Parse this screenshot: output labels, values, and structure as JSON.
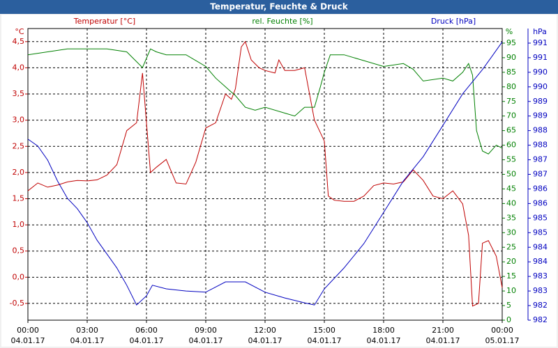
{
  "chart_data": {
    "type": "line",
    "title": "Temperatur, Feuchte & Druck",
    "ylabel": "°C",
    "y2label": "%",
    "y3label": "hPa",
    "xlim": [
      0,
      24
    ],
    "xticks": [
      {
        "value": 0,
        "label": "00:00",
        "sublabel": "04.01.17"
      },
      {
        "value": 3,
        "label": "03:00",
        "sublabel": "04.01.17"
      },
      {
        "value": 6,
        "label": "06:00",
        "sublabel": "04.01.17"
      },
      {
        "value": 9,
        "label": "09:00",
        "sublabel": "04.01.17"
      },
      {
        "value": 12,
        "label": "12:00",
        "sublabel": "04.01.17"
      },
      {
        "value": 15,
        "label": "15:00",
        "sublabel": "04.01.17"
      },
      {
        "value": 18,
        "label": "18:00",
        "sublabel": "04.01.17"
      },
      {
        "value": 21,
        "label": "21:00",
        "sublabel": "04.01.17"
      },
      {
        "value": 24,
        "label": "00:00",
        "sublabel": "05.01.17"
      }
    ],
    "ylim": [
      -0.82,
      4.75
    ],
    "yticks": [
      {
        "value": -0.5,
        "label": "-0,5"
      },
      {
        "value": 0,
        "label": "0,0"
      },
      {
        "value": 0.5,
        "label": "0,5"
      },
      {
        "value": 1,
        "label": "1,0"
      },
      {
        "value": 1.5,
        "label": "1,5"
      },
      {
        "value": 2,
        "label": "2,0"
      },
      {
        "value": 2.5,
        "label": "2,5"
      },
      {
        "value": 3,
        "label": "3,0"
      },
      {
        "value": 3.5,
        "label": "3,5"
      },
      {
        "value": 4,
        "label": "4,0"
      },
      {
        "value": 4.5,
        "label": "4,5"
      }
    ],
    "y2lim": [
      0,
      100
    ],
    "y2ticks": [
      0,
      5,
      10,
      15,
      20,
      25,
      30,
      35,
      40,
      45,
      50,
      55,
      60,
      65,
      70,
      75,
      80,
      85,
      90,
      95
    ],
    "y3lim": [
      981.9,
      991.5
    ],
    "y3ticks": [
      {
        "value": 981.9,
        "label": "982"
      },
      {
        "value": 982.38,
        "label": "982"
      },
      {
        "value": 982.86,
        "label": "983"
      },
      {
        "value": 983.34,
        "label": "983"
      },
      {
        "value": 983.82,
        "label": "984"
      },
      {
        "value": 984.3,
        "label": "984"
      },
      {
        "value": 984.78,
        "label": "985"
      },
      {
        "value": 985.26,
        "label": "985"
      },
      {
        "value": 985.74,
        "label": "986"
      },
      {
        "value": 986.22,
        "label": "986"
      },
      {
        "value": 986.7,
        "label": "987"
      },
      {
        "value": 987.18,
        "label": "987"
      },
      {
        "value": 987.66,
        "label": "988"
      },
      {
        "value": 988.14,
        "label": "988"
      },
      {
        "value": 988.62,
        "label": "989"
      },
      {
        "value": 989.1,
        "label": "989"
      },
      {
        "value": 989.58,
        "label": "990"
      },
      {
        "value": 990.06,
        "label": "990"
      },
      {
        "value": 990.54,
        "label": "991"
      },
      {
        "value": 991.02,
        "label": "991"
      }
    ],
    "grid": true,
    "series": [
      {
        "name": "Temperatur [°C]",
        "color": "#c00000",
        "axis": "y",
        "x": [
          0,
          0.5,
          1,
          1.5,
          2,
          2.5,
          3,
          3.5,
          4,
          4.5,
          5,
          5.5,
          5.8,
          6.2,
          6.5,
          7,
          7.5,
          8,
          8.5,
          9,
          9.5,
          10,
          10.3,
          10.5,
          10.8,
          11,
          11.3,
          11.7,
          12,
          12.5,
          12.7,
          13,
          13.5,
          14,
          14.5,
          15,
          15.2,
          15.5,
          16,
          16.5,
          17,
          17.5,
          18,
          18.5,
          19,
          19.5,
          20,
          20.5,
          21,
          21.5,
          22,
          22.3,
          22.5,
          22.8,
          23,
          23.3,
          23.7,
          24
        ],
        "values": [
          1.65,
          1.8,
          1.72,
          1.76,
          1.82,
          1.85,
          1.84,
          1.86,
          1.95,
          2.15,
          2.8,
          2.95,
          3.9,
          2.0,
          2.1,
          2.25,
          1.8,
          1.78,
          2.2,
          2.85,
          2.95,
          3.5,
          3.4,
          3.6,
          4.4,
          4.5,
          4.15,
          4.0,
          3.95,
          3.9,
          4.15,
          3.95,
          3.95,
          4.0,
          3.0,
          2.6,
          1.55,
          1.47,
          1.45,
          1.45,
          1.55,
          1.75,
          1.8,
          1.78,
          1.82,
          2.05,
          1.85,
          1.55,
          1.5,
          1.65,
          1.4,
          0.8,
          -0.55,
          -0.5,
          0.65,
          0.7,
          0.4,
          -0.2
        ]
      },
      {
        "name": "rel. Feuchte [%]",
        "color": "#008000",
        "axis": "y2",
        "x": [
          0,
          1,
          2,
          3,
          4,
          5,
          5.8,
          6.2,
          6.5,
          7,
          8,
          8.5,
          9,
          9.5,
          10,
          10.5,
          11,
          11.5,
          12,
          13,
          13.5,
          14,
          14.5,
          14.8,
          15,
          15.3,
          16,
          17,
          18,
          19,
          19.5,
          20,
          21,
          21.5,
          22,
          22.3,
          22.5,
          22.7,
          23,
          23.3,
          23.7,
          24
        ],
        "values": [
          91,
          92,
          93,
          93,
          93,
          92,
          86.6,
          93,
          92,
          91,
          91,
          89,
          87,
          83,
          80,
          77,
          73,
          72,
          73,
          71,
          70,
          73,
          73,
          80,
          85,
          91,
          91,
          89,
          87,
          88,
          86,
          82,
          83,
          82,
          85,
          88,
          84,
          65,
          58,
          57,
          60,
          59
        ]
      },
      {
        "name": "Druck [hPa]",
        "color": "#0000c0",
        "axis": "y3",
        "x": [
          0,
          0.5,
          1,
          1.5,
          2,
          2.5,
          3,
          3.5,
          4,
          4.5,
          5,
          5.5,
          6,
          6.3,
          7,
          8,
          9,
          10,
          11,
          12,
          13,
          14,
          14.5,
          15,
          16,
          17,
          18,
          19,
          20,
          21,
          22,
          23,
          23.5,
          24
        ],
        "values": [
          987.86,
          987.63,
          987.17,
          986.48,
          985.91,
          985.57,
          985.11,
          984.53,
          984.08,
          983.62,
          983.05,
          982.4,
          982.7,
          983.05,
          982.93,
          982.86,
          982.82,
          983.16,
          983.16,
          982.82,
          982.63,
          982.47,
          982.4,
          982.93,
          983.62,
          984.42,
          985.45,
          986.48,
          987.28,
          988.31,
          989.35,
          990.15,
          990.6,
          991.06
        ]
      }
    ]
  }
}
